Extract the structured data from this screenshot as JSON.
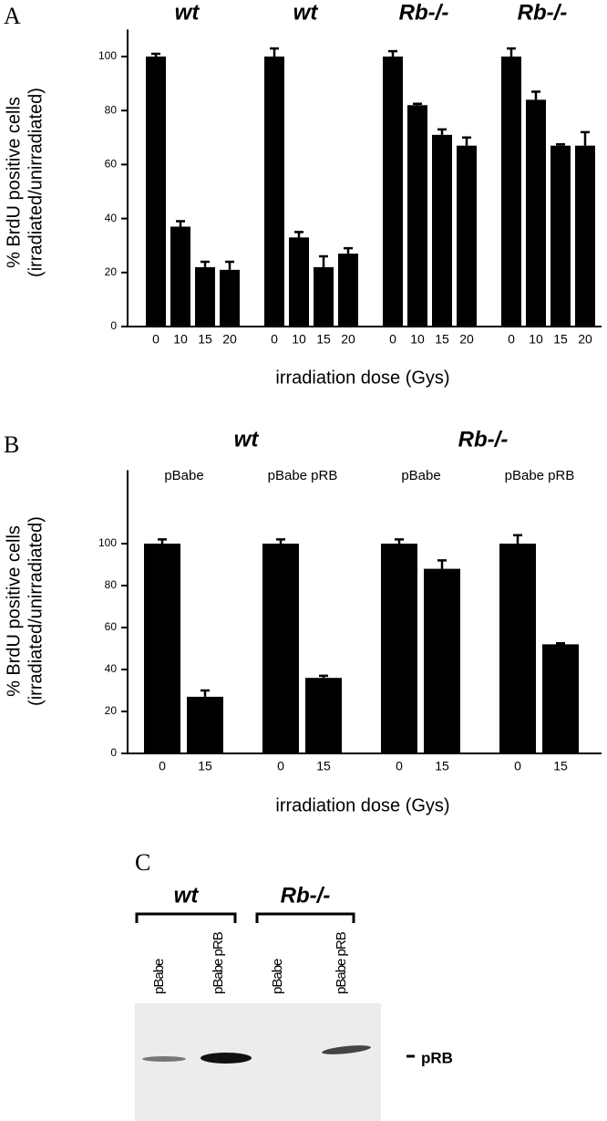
{
  "chart_data": [
    {
      "type": "grouped-bar",
      "panel": "A",
      "color": "#000000",
      "y_label": [
        "% BrdU positive cells",
        "(irradiated/unirradiated)"
      ],
      "x_label": "irradiation dose (Gys)",
      "ylim": [
        0,
        110
      ],
      "yticks": [
        0,
        20,
        40,
        60,
        80,
        100
      ],
      "groups": [
        {
          "label": "wt",
          "categories": [
            "0",
            "10",
            "15",
            "20"
          ],
          "values": [
            100,
            37,
            22,
            21
          ],
          "errors": [
            1,
            2,
            2,
            3
          ]
        },
        {
          "label": "wt",
          "categories": [
            "0",
            "10",
            "15",
            "20"
          ],
          "values": [
            100,
            33,
            22,
            27
          ],
          "errors": [
            3,
            2,
            4,
            2
          ]
        },
        {
          "label": "Rb-/-",
          "categories": [
            "0",
            "10",
            "15",
            "20"
          ],
          "values": [
            100,
            82,
            71,
            67
          ],
          "errors": [
            2,
            0.5,
            2,
            3
          ]
        },
        {
          "label": "Rb-/-",
          "categories": [
            "0",
            "10",
            "15",
            "20"
          ],
          "values": [
            100,
            84,
            67,
            67
          ],
          "errors": [
            3,
            3,
            0.5,
            5
          ]
        }
      ]
    },
    {
      "type": "grouped-bar",
      "panel": "B",
      "color": "#000000",
      "y_label": [
        "% BrdU positive cells",
        "(irradiated/unirradiated)"
      ],
      "x_label": "irradiation dose (Gys)",
      "ylim": [
        0,
        135
      ],
      "yticks": [
        0,
        20,
        40,
        60,
        80,
        100
      ],
      "groups": [
        {
          "label": "wt",
          "subgroups": [
            {
              "label": "pBabe",
              "categories": [
                "0",
                "15"
              ],
              "values": [
                100,
                27
              ],
              "errors": [
                2,
                3
              ]
            },
            {
              "label": "pBabe pRB",
              "categories": [
                "0",
                "15"
              ],
              "values": [
                100,
                36
              ],
              "errors": [
                2,
                1
              ]
            }
          ]
        },
        {
          "label": "Rb-/-",
          "subgroups": [
            {
              "label": "pBabe",
              "categories": [
                "0",
                "15"
              ],
              "values": [
                100,
                88
              ],
              "errors": [
                2,
                4
              ]
            },
            {
              "label": "pBabe pRB",
              "categories": [
                "0",
                "15"
              ],
              "values": [
                100,
                52
              ],
              "errors": [
                4,
                0.5
              ]
            }
          ]
        }
      ]
    }
  ],
  "blot": {
    "panel": "C",
    "groups": [
      "wt",
      "Rb-/-"
    ],
    "lanes": [
      "pBabe",
      "pBabe pRB",
      "pBabe",
      "pBabe pRB"
    ],
    "band_label": "pRB"
  }
}
